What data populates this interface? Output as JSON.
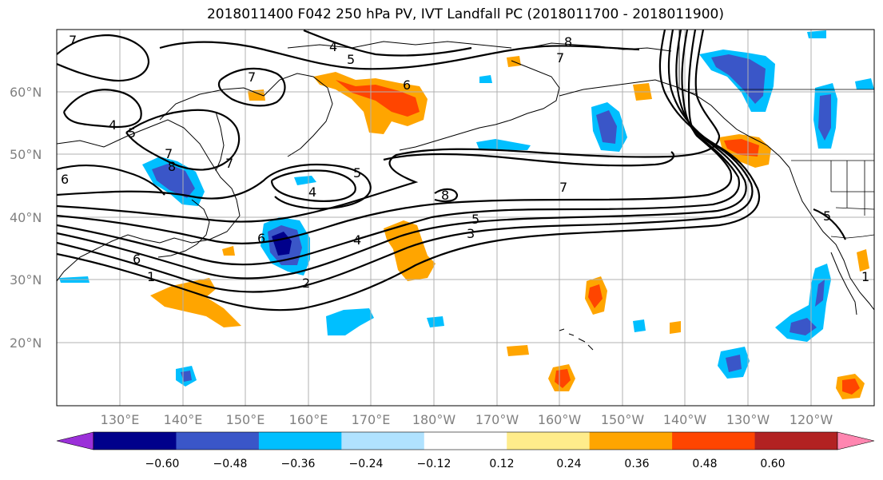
{
  "title": "2018011400 F042 250 hPa PV, IVT Landfall PC (2018011700 - 2018011900)",
  "map": {
    "lat_ticks": [
      "60°N",
      "50°N",
      "40°N",
      "30°N",
      "20°N"
    ],
    "lon_ticks": [
      "130°E",
      "140°E",
      "150°E",
      "160°E",
      "170°E",
      "180°W",
      "170°W",
      "160°W",
      "150°W",
      "140°W",
      "130°W",
      "120°W"
    ],
    "contour_labels": [
      "7",
      "4",
      "5",
      "6",
      "7",
      "8",
      "5",
      "7",
      "4",
      "5",
      "6",
      "7",
      "8",
      "4",
      "5",
      "7",
      "5",
      "4",
      "3",
      "2",
      "1",
      "7",
      "6",
      "8",
      "6",
      "1"
    ],
    "contour_color": "#000000",
    "grid_color": "#b0b0b0",
    "fill_features": [
      {
        "name": "shading-kuril-north",
        "level": "positive"
      },
      {
        "name": "shading-japan-east",
        "level": "negative"
      },
      {
        "name": "shading-subtropical-west",
        "level": "positive"
      },
      {
        "name": "shading-central-pacific",
        "level": "positive"
      },
      {
        "name": "shading-gulf-of-alaska",
        "level": "negative"
      },
      {
        "name": "shading-pacific-northwest",
        "level": "positive"
      },
      {
        "name": "shading-baja",
        "level": "negative"
      }
    ]
  },
  "colorbar": {
    "tick_labels": [
      "−0.60",
      "−0.48",
      "−0.36",
      "−0.24",
      "−0.12",
      "0.12",
      "0.24",
      "0.36",
      "0.48",
      "0.60"
    ],
    "colors": [
      "#9b30d9",
      "#00008b",
      "#3a56c8",
      "#00bfff",
      "#b0e2ff",
      "#ffffff",
      "#ffec8b",
      "#ffa500",
      "#ff4500",
      "#b22222",
      "#ff86b0"
    ]
  }
}
